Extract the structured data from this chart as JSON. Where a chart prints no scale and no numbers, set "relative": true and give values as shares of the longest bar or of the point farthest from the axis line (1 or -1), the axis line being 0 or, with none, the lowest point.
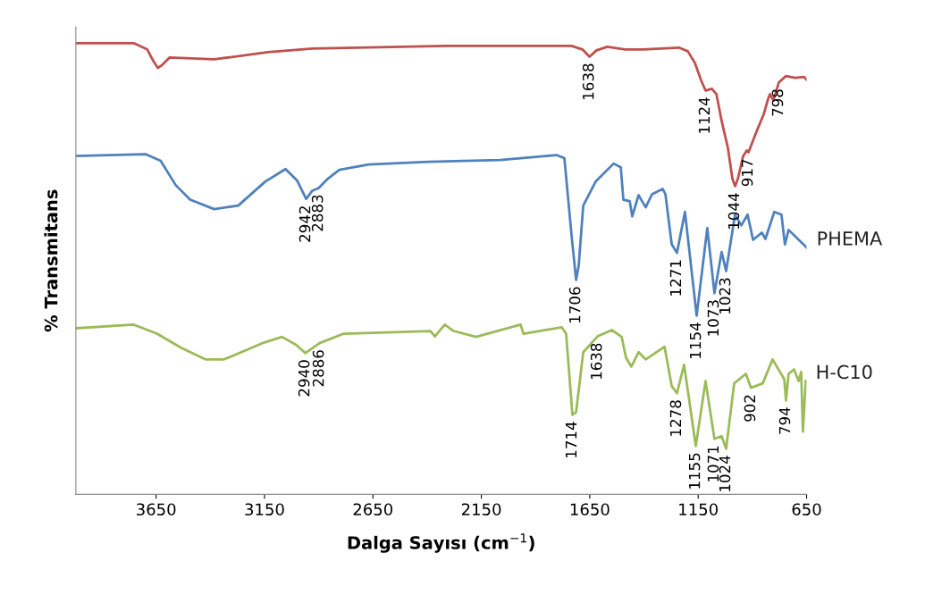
{
  "chart_data": {
    "type": "line",
    "relative": true,
    "xlabel": "Dalga Sayısı (cm$^{−1}$)",
    "ylabel": "% Transmitans",
    "xlim": [
      4020,
      650
    ],
    "xticks": [
      3650,
      3150,
      2650,
      2150,
      1650,
      1150,
      650
    ],
    "grid": false,
    "legend": false,
    "marker": "none",
    "line_style": "solid",
    "series": [
      {
        "color": "#c0504d",
        "x": [
          4020,
          3753,
          3691,
          3662,
          3642,
          3621,
          3588,
          3485,
          3382,
          3135,
          2929,
          2723,
          2311,
          1734,
          1684,
          1651,
          1619,
          1569,
          1487,
          1404,
          1239,
          1198,
          1165,
          1136,
          1116,
          1087,
          1066,
          1042,
          1013,
          992,
          980,
          967,
          943,
          926,
          918,
          889,
          869,
          848,
          827,
          819,
          803,
          778,
          745,
          704,
          662,
          650
        ],
        "values": [
          1.0,
          1.0,
          0.986,
          0.96,
          0.945,
          0.952,
          0.968,
          0.966,
          0.964,
          0.98,
          0.988,
          0.99,
          0.994,
          0.994,
          0.986,
          0.97,
          0.984,
          0.992,
          0.986,
          0.986,
          0.99,
          0.982,
          0.956,
          0.917,
          0.895,
          0.899,
          0.887,
          0.828,
          0.768,
          0.699,
          0.683,
          0.699,
          0.749,
          0.762,
          0.758,
          0.794,
          0.818,
          0.842,
          0.877,
          0.887,
          0.873,
          0.913,
          0.927,
          0.923,
          0.925,
          0.919
        ]
      },
      {
        "name": "PHEMA",
        "color": "#4f81bd",
        "x": [
          4020,
          3699,
          3629,
          3559,
          3493,
          3382,
          3271,
          3147,
          3053,
          2999,
          2958,
          2929,
          2900,
          2859,
          2805,
          2669,
          2393,
          2064,
          1804,
          1767,
          1734,
          1713,
          1701,
          1680,
          1623,
          1540,
          1507,
          1495,
          1466,
          1454,
          1425,
          1392,
          1363,
          1314,
          1301,
          1272,
          1248,
          1211,
          1157,
          1108,
          1075,
          1042,
          1021,
          980,
          951,
          922,
          897,
          856,
          840,
          799,
          766,
          750,
          733,
          650
        ],
        "values": [
          0.75,
          0.754,
          0.739,
          0.685,
          0.653,
          0.632,
          0.64,
          0.693,
          0.721,
          0.695,
          0.655,
          0.673,
          0.679,
          0.699,
          0.719,
          0.731,
          0.737,
          0.741,
          0.752,
          0.745,
          0.574,
          0.475,
          0.507,
          0.64,
          0.693,
          0.733,
          0.725,
          0.653,
          0.65,
          0.616,
          0.663,
          0.636,
          0.665,
          0.677,
          0.665,
          0.554,
          0.535,
          0.626,
          0.396,
          0.59,
          0.446,
          0.537,
          0.495,
          0.62,
          0.596,
          0.62,
          0.564,
          0.58,
          0.566,
          0.626,
          0.62,
          0.554,
          0.586,
          0.547
        ]
      },
      {
        "name": "H-C10",
        "color": "#9bbb59",
        "x": [
          4020,
          3753,
          3646,
          3535,
          3423,
          3337,
          3160,
          3069,
          3003,
          2962,
          2896,
          2785,
          2385,
          2364,
          2319,
          2278,
          2175,
          1969,
          1956,
          1779,
          1759,
          1730,
          1713,
          1680,
          1614,
          1548,
          1503,
          1483,
          1458,
          1425,
          1392,
          1305,
          1272,
          1248,
          1215,
          1161,
          1116,
          1075,
          1042,
          1021,
          984,
          930,
          906,
          852,
          807,
          753,
          745,
          733,
          708,
          687,
          675,
          667,
          654
        ],
        "values": [
          0.368,
          0.376,
          0.356,
          0.325,
          0.299,
          0.299,
          0.335,
          0.349,
          0.331,
          0.313,
          0.335,
          0.356,
          0.362,
          0.35,
          0.376,
          0.362,
          0.349,
          0.376,
          0.356,
          0.37,
          0.356,
          0.176,
          0.182,
          0.315,
          0.35,
          0.364,
          0.349,
          0.303,
          0.283,
          0.315,
          0.299,
          0.327,
          0.24,
          0.224,
          0.287,
          0.107,
          0.251,
          0.123,
          0.129,
          0.101,
          0.246,
          0.267,
          0.236,
          0.246,
          0.299,
          0.255,
          0.208,
          0.267,
          0.277,
          0.251,
          0.271,
          0.139,
          0.251
        ]
      }
    ],
    "annotations": [
      {
        "text": "1638",
        "x": 1651,
        "y": 0.97
      },
      {
        "text": "1124",
        "x": 1116,
        "y": 0.895
      },
      {
        "text": "1044",
        "x": 980,
        "y": 0.683
      },
      {
        "text": "917",
        "x": 918,
        "y": 0.758
      },
      {
        "text": "798",
        "x": 778,
        "y": 0.913
      },
      {
        "text": "2942",
        "x": 2958,
        "y": 0.655
      },
      {
        "text": "2883",
        "x": 2900,
        "y": 0.679
      },
      {
        "text": "1706",
        "x": 1713,
        "y": 0.475
      },
      {
        "text": "1271",
        "x": 1248,
        "y": 0.535
      },
      {
        "text": "1154",
        "x": 1157,
        "y": 0.396
      },
      {
        "text": "1073",
        "x": 1075,
        "y": 0.446
      },
      {
        "text": "1023",
        "x": 1021,
        "y": 0.495
      },
      {
        "text": "2940",
        "x": 2962,
        "y": 0.313
      },
      {
        "text": "2886",
        "x": 2896,
        "y": 0.335
      },
      {
        "text": "1714",
        "x": 1730,
        "y": 0.176
      },
      {
        "text": "1638",
        "x": 1614,
        "y": 0.35
      },
      {
        "text": "1278",
        "x": 1248,
        "y": 0.224
      },
      {
        "text": "1155",
        "x": 1161,
        "y": 0.107
      },
      {
        "text": "1071",
        "x": 1075,
        "y": 0.123
      },
      {
        "text": "1024",
        "x": 1021,
        "y": 0.101
      },
      {
        "text": "902",
        "x": 906,
        "y": 0.236
      },
      {
        "text": "794",
        "x": 745,
        "y": 0.208
      }
    ]
  }
}
